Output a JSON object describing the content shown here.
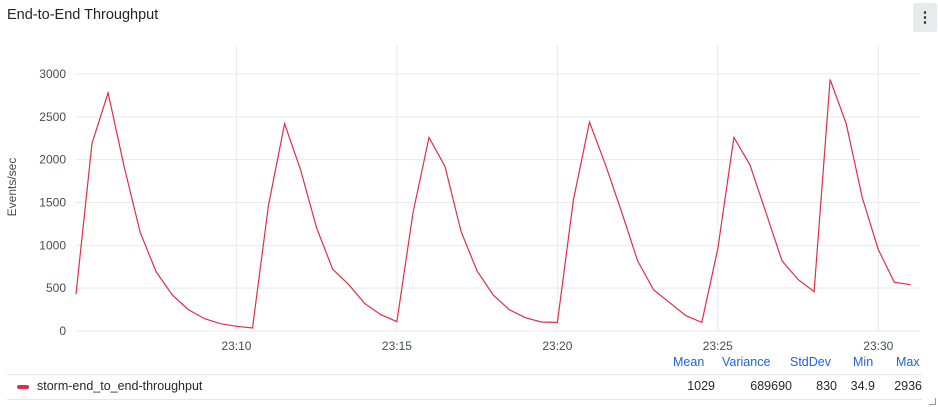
{
  "panel": {
    "title": "End-to-End Throughput",
    "menu_icon": "kebab-menu-icon"
  },
  "chart_data": {
    "type": "line",
    "ylabel": "Events/sec",
    "ylim": [
      0,
      3000
    ],
    "y_ticks": [
      0,
      500,
      1000,
      1500,
      2000,
      2500,
      3000
    ],
    "x_ticks": [
      "23:10",
      "23:15",
      "23:20",
      "23:25",
      "23:30"
    ],
    "x_tick_minutes": [
      10,
      15,
      20,
      25,
      30
    ],
    "xlim_minutes": [
      5.0,
      31.3
    ],
    "series": [
      {
        "name": "storm-end_to_end-throughput",
        "color": "#e02f44",
        "x_minutes": [
          5.0,
          5.5,
          6.0,
          6.5,
          7.0,
          7.5,
          8.0,
          8.5,
          9.0,
          9.5,
          10.0,
          10.5,
          11.0,
          11.5,
          12.0,
          12.5,
          13.0,
          13.5,
          14.0,
          14.5,
          15.0,
          15.5,
          16.0,
          16.5,
          17.0,
          17.5,
          18.0,
          18.5,
          19.0,
          19.5,
          20.0,
          20.5,
          21.0,
          21.5,
          22.0,
          22.5,
          23.0,
          23.5,
          24.0,
          24.5,
          25.0,
          25.5,
          26.0,
          26.5,
          27.0,
          27.5,
          28.0,
          28.5,
          29.0,
          29.5,
          30.0,
          30.5,
          31.0
        ],
        "values": [
          430,
          2190,
          2780,
          1920,
          1150,
          690,
          420,
          250,
          145,
          85,
          55,
          35,
          1470,
          2420,
          1880,
          1200,
          720,
          540,
          320,
          190,
          110,
          1380,
          2260,
          1920,
          1160,
          700,
          420,
          250,
          155,
          105,
          100,
          1530,
          2440,
          1940,
          1390,
          820,
          480,
          330,
          180,
          100,
          960,
          2260,
          1940,
          1380,
          820,
          600,
          460,
          2936,
          2420,
          1560,
          950,
          570,
          540
        ]
      }
    ]
  },
  "legend": {
    "headers": {
      "mean": "Mean",
      "variance": "Variance",
      "stddev": "StdDev",
      "min": "Min",
      "max": "Max"
    },
    "rows": [
      {
        "name": "storm-end_to_end-throughput",
        "color": "#e02f44",
        "mean": "1029",
        "variance": "689690",
        "stddev": "830",
        "min": "34.9",
        "max": "2936"
      }
    ]
  }
}
